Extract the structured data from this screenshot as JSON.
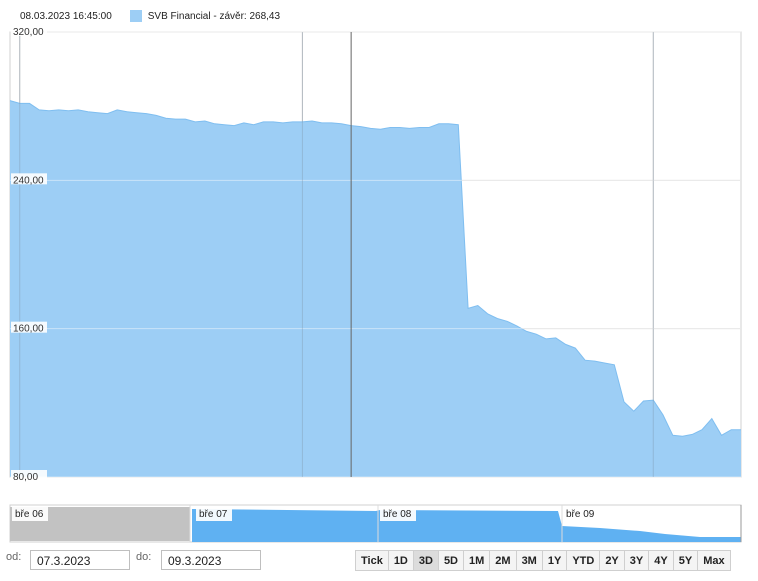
{
  "legend": {
    "datetime": "08.03.2023 16:45:00",
    "series_label": "SVB Financial - závěr: 268,43",
    "color": "#9dcef5"
  },
  "chart_data": {
    "type": "area",
    "ylim": [
      80,
      320
    ],
    "yticks": [
      "320,00",
      "240,00",
      "160,00",
      "80,00"
    ],
    "ytick_values": [
      320,
      240,
      160,
      80
    ],
    "x": [
      0,
      1,
      2,
      3,
      4,
      5,
      6,
      7,
      8,
      9,
      10,
      11,
      12,
      13,
      14,
      15,
      16,
      17,
      18,
      19,
      20,
      21,
      22,
      23,
      24,
      25,
      26,
      27,
      28,
      29,
      30,
      31,
      32,
      33,
      34,
      35,
      36,
      37,
      38,
      39,
      40,
      41,
      42,
      43,
      44,
      45,
      46,
      47,
      48,
      49,
      50,
      51,
      52,
      53,
      54,
      55,
      56,
      57,
      58,
      59,
      60,
      61,
      62,
      63,
      64,
      65,
      66,
      67,
      68,
      69,
      70,
      71,
      72,
      73,
      74,
      75
    ],
    "values": [
      283.0,
      281.5,
      281.5,
      278.0,
      277.5,
      278.0,
      277.5,
      278.0,
      277.0,
      276.5,
      276.0,
      278.0,
      277.0,
      276.5,
      276.0,
      275.0,
      273.5,
      273.0,
      273.0,
      271.5,
      272.0,
      270.5,
      270.0,
      269.5,
      271.0,
      270.0,
      271.5,
      271.5,
      271.0,
      271.5,
      271.5,
      272.0,
      271.0,
      271.0,
      270.5,
      269.5,
      269.0,
      268.0,
      267.5,
      268.5,
      268.5,
      268.0,
      268.5,
      268.5,
      270.5,
      270.5,
      270.0,
      171.0,
      172.5,
      168.0,
      165.5,
      164.0,
      161.5,
      158.5,
      157.0,
      154.5,
      155.0,
      151.5,
      149.5,
      143.0,
      142.5,
      141.5,
      140.5,
      120.5,
      115.5,
      121.0,
      121.5,
      113.5,
      102.5,
      102.0,
      103.0,
      105.5,
      111.5,
      102.5,
      105.5,
      105.5
    ],
    "vertical_gridline_x": [
      1,
      30,
      66
    ],
    "crosshair_x": 35
  },
  "navigator": {
    "labels": [
      "bře 06",
      "bře 07",
      "bře 08",
      "bře 09"
    ]
  },
  "controls": {
    "from_label": "od:",
    "from_value": "07.3.2023",
    "to_label": "do:",
    "to_value": "09.3.2023",
    "buttons": [
      "Tick",
      "1D",
      "3D",
      "5D",
      "1M",
      "2M",
      "3M",
      "1Y",
      "YTD",
      "2Y",
      "3Y",
      "4Y",
      "5Y",
      "Max"
    ],
    "selected": "3D"
  }
}
